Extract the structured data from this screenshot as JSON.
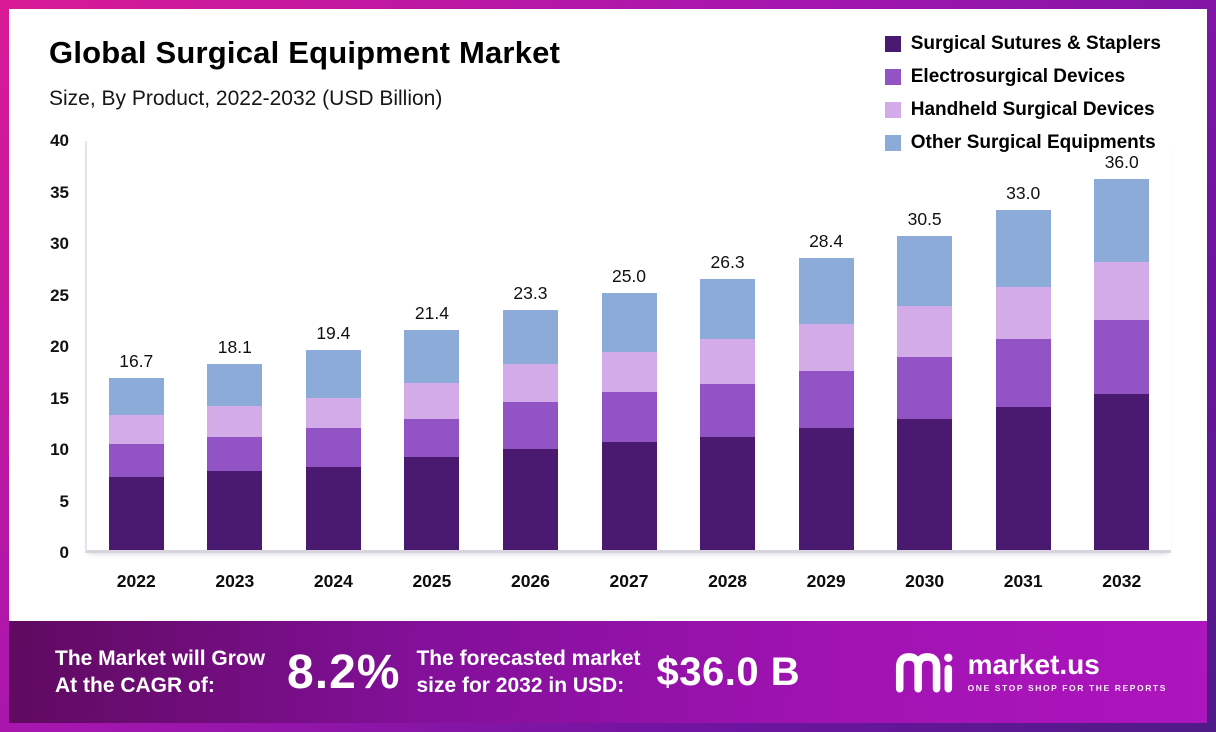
{
  "chart_data": {
    "type": "bar",
    "stacked": true,
    "title": "Global Surgical Equipment Market",
    "subtitle": "Size, By Product, 2022-2032 (USD Billion)",
    "categories": [
      "2022",
      "2023",
      "2024",
      "2025",
      "2026",
      "2027",
      "2028",
      "2029",
      "2030",
      "2031",
      "2032"
    ],
    "series": [
      {
        "name": "Surgical Sutures & Staplers",
        "color": "#4a1a70",
        "values": [
          7.1,
          7.7,
          8.1,
          9.0,
          9.8,
          10.5,
          11.0,
          11.8,
          12.7,
          13.9,
          15.1
        ]
      },
      {
        "name": "Electrosurgical Devices",
        "color": "#9253c5",
        "values": [
          3.2,
          3.3,
          3.7,
          3.7,
          4.6,
          4.8,
          5.1,
          5.6,
          6.0,
          6.6,
          7.2
        ]
      },
      {
        "name": "Handheld Surgical Devices",
        "color": "#d2abe8",
        "values": [
          2.8,
          3.0,
          3.0,
          3.5,
          3.7,
          3.9,
          4.4,
          4.5,
          5.0,
          5.0,
          5.7
        ]
      },
      {
        "name": "Other Surgical Equipments",
        "color": "#8cabd9",
        "values": [
          3.6,
          4.1,
          4.6,
          5.2,
          5.2,
          5.8,
          5.8,
          6.5,
          6.8,
          7.5,
          8.0
        ]
      }
    ],
    "totals": [
      16.7,
      18.1,
      19.4,
      21.4,
      23.3,
      25.0,
      26.3,
      28.4,
      30.5,
      33.0,
      36.0
    ],
    "ylim": [
      0,
      40
    ],
    "yticks": [
      0,
      5,
      10,
      15,
      20,
      25,
      30,
      35,
      40
    ],
    "grid": false,
    "legend_position": "top-right"
  },
  "banner": {
    "grow_line1": "The Market will Grow",
    "grow_line2": "At the CAGR of:",
    "cagr_value": "8.2%",
    "forecast_line1": "The forecasted market",
    "forecast_line2": "size for 2032 in USD:",
    "forecast_value": "$36.0 B",
    "brand": "market.us",
    "brand_tagline": "ONE STOP SHOP FOR THE REPORTS"
  }
}
